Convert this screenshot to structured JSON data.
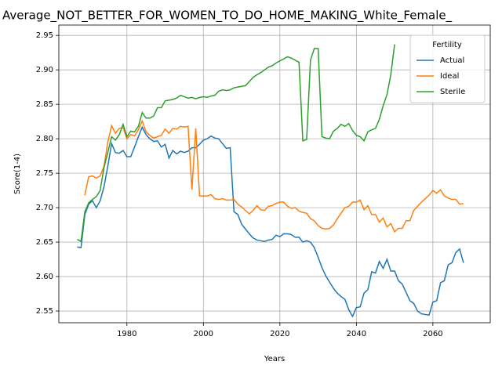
{
  "chart_data": {
    "type": "line",
    "title": "Average_NOT_BETTER_FOR_WOMEN_TO_DO_HOME_MAKING_White_Female_",
    "x_label": "Years",
    "y_label": "Score(1-4)",
    "legend_title": "Fertility",
    "legend_position": "upper right",
    "grid": true,
    "xlim": [
      1962.2,
      2075.0
    ],
    "ylim": [
      2.533,
      2.965
    ],
    "xticks": [
      1980,
      2000,
      2020,
      2040,
      2060
    ],
    "yticks": [
      2.55,
      {
        "value": 2.6,
        "label": "2.60"
      },
      2.65,
      {
        "value": 2.7,
        "label": "2.70"
      },
      2.75,
      {
        "value": 2.8,
        "label": "2.80"
      },
      2.85,
      {
        "value": 2.9,
        "label": "2.90"
      },
      2.95
    ],
    "x": [
      1967,
      1968,
      1969,
      1970,
      1971,
      1972,
      1973,
      1974,
      1975,
      1976,
      1977,
      1978,
      1979,
      1980,
      1981,
      1982,
      1983,
      1984,
      1985,
      1986,
      1987,
      1988,
      1989,
      1990,
      1991,
      1992,
      1993,
      1994,
      1995,
      1996,
      1997,
      1998,
      1999,
      2000,
      2001,
      2002,
      2003,
      2004,
      2005,
      2006,
      2007,
      2008,
      2009,
      2010,
      2011,
      2012,
      2013,
      2014,
      2015,
      2016,
      2017,
      2018,
      2019,
      2020,
      2021,
      2022,
      2023,
      2024,
      2025,
      2026,
      2027,
      2028,
      2029,
      2030,
      2031,
      2032,
      2033,
      2034,
      2035,
      2036,
      2037,
      2038,
      2039,
      2040,
      2041,
      2042,
      2043,
      2044,
      2045,
      2046,
      2047,
      2048,
      2049,
      2050,
      2051,
      2052,
      2053,
      2054,
      2055,
      2056,
      2057,
      2058,
      2059,
      2060,
      2061,
      2062,
      2063,
      2064,
      2065,
      2066,
      2067,
      2068
    ],
    "series": [
      {
        "name": "Actual",
        "color": "#1f77b4",
        "values": [
          2.643,
          2.642,
          2.69,
          2.705,
          2.71,
          2.7,
          2.71,
          2.73,
          2.76,
          2.793,
          2.78,
          2.779,
          2.783,
          2.774,
          2.774,
          2.788,
          2.803,
          2.817,
          2.806,
          2.8,
          2.796,
          2.797,
          2.788,
          2.792,
          2.772,
          2.783,
          2.778,
          2.782,
          2.78,
          2.782,
          2.787,
          2.787,
          2.792,
          2.798,
          2.8,
          2.804,
          2.801,
          2.8,
          2.793,
          2.786,
          2.787,
          2.694,
          2.69,
          2.676,
          2.669,
          2.662,
          2.656,
          2.653,
          2.652,
          2.651,
          2.653,
          2.654,
          2.66,
          2.658,
          2.662,
          2.662,
          2.661,
          2.657,
          2.657,
          2.65,
          2.652,
          2.65,
          2.642,
          2.628,
          2.613,
          2.601,
          2.592,
          2.583,
          2.576,
          2.571,
          2.567,
          2.552,
          2.542,
          2.555,
          2.556,
          2.576,
          2.581,
          2.607,
          2.605,
          2.622,
          2.612,
          2.625,
          2.608,
          2.608,
          2.594,
          2.589,
          2.577,
          2.565,
          2.561,
          2.55,
          2.546,
          2.545,
          2.544,
          2.563,
          2.565,
          2.591,
          2.594,
          2.617,
          2.62,
          2.635,
          2.64,
          2.62
        ]
      },
      {
        "name": "Ideal",
        "color": "#ff7f0e",
        "values": [
          null,
          null,
          2.718,
          2.745,
          2.746,
          2.743,
          2.746,
          2.76,
          2.795,
          2.819,
          2.808,
          2.815,
          2.816,
          2.8,
          2.806,
          2.804,
          2.813,
          2.826,
          2.81,
          2.805,
          2.801,
          2.803,
          2.805,
          2.814,
          2.808,
          2.815,
          2.814,
          2.818,
          2.817,
          2.818,
          2.726,
          2.815,
          2.717,
          2.717,
          2.717,
          2.719,
          2.713,
          2.712,
          2.713,
          2.711,
          2.711,
          2.712,
          2.705,
          2.701,
          2.696,
          2.691,
          2.696,
          2.703,
          2.697,
          2.696,
          2.702,
          2.703,
          2.706,
          2.708,
          2.708,
          2.702,
          2.699,
          2.7,
          2.695,
          2.693,
          2.692,
          2.684,
          2.681,
          2.674,
          2.67,
          2.669,
          2.67,
          2.675,
          2.684,
          2.692,
          2.7,
          2.702,
          2.708,
          2.708,
          2.711,
          2.697,
          2.703,
          2.69,
          2.69,
          2.679,
          2.685,
          2.672,
          2.677,
          2.665,
          2.67,
          2.67,
          2.681,
          2.681,
          2.696,
          2.702,
          2.708,
          2.713,
          2.718,
          2.725,
          2.721,
          2.726,
          2.717,
          2.714,
          2.712,
          2.712,
          2.705,
          2.706
        ]
      },
      {
        "name": "Sterile",
        "color": "#2ca02c",
        "values": [
          2.654,
          2.651,
          2.694,
          2.707,
          2.712,
          2.716,
          2.725,
          2.758,
          2.78,
          2.803,
          2.798,
          2.806,
          2.821,
          2.803,
          2.811,
          2.81,
          2.818,
          2.838,
          2.83,
          2.83,
          2.833,
          2.845,
          2.845,
          2.855,
          2.856,
          2.857,
          2.859,
          2.863,
          2.861,
          2.859,
          2.86,
          2.858,
          2.86,
          2.861,
          2.86,
          2.862,
          2.863,
          2.869,
          2.871,
          2.87,
          2.871,
          2.874,
          2.875,
          2.876,
          2.877,
          2.883,
          2.889,
          2.893,
          2.896,
          2.9,
          2.904,
          2.906,
          2.91,
          2.913,
          2.916,
          2.919,
          2.917,
          2.914,
          2.911,
          2.797,
          2.799,
          2.914,
          2.931,
          2.931,
          2.803,
          2.801,
          2.8,
          2.811,
          2.815,
          2.821,
          2.818,
          2.822,
          2.812,
          2.805,
          2.803,
          2.797,
          2.81,
          2.813,
          2.815,
          2.828,
          2.848,
          2.864,
          2.893,
          2.937,
          null,
          null,
          null,
          null,
          null,
          null,
          null,
          null,
          null,
          null,
          null,
          null,
          null,
          null,
          null,
          null,
          null,
          null
        ]
      }
    ]
  }
}
